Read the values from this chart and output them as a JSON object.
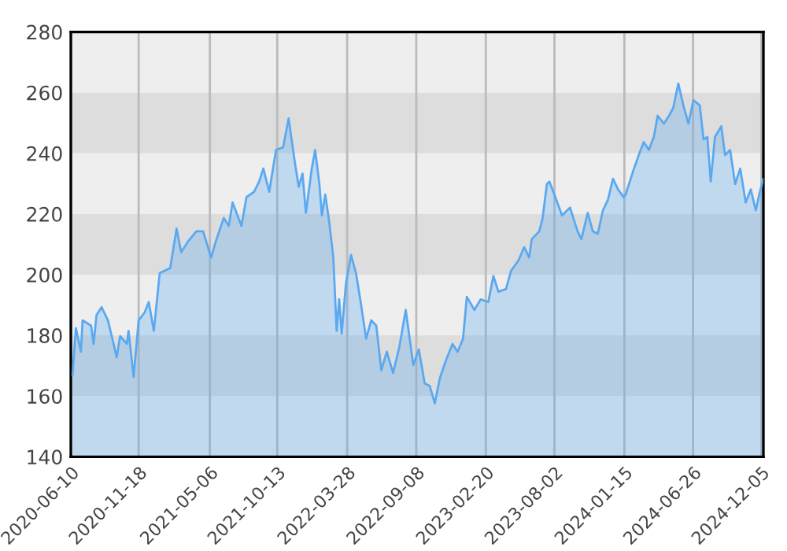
{
  "chart_data": {
    "type": "area",
    "x": [
      "2020-06-14",
      "2020-06-22",
      "2020-07-04",
      "2020-07-08",
      "2020-07-28",
      "2020-08-03",
      "2020-08-10",
      "2020-08-22",
      "2020-09-06",
      "2020-09-15",
      "2020-09-27",
      "2020-10-05",
      "2020-10-21",
      "2020-10-25",
      "2020-11-06",
      "2020-11-18",
      "2020-12-02",
      "2020-12-12",
      "2020-12-24",
      "2021-01-07",
      "2021-02-01",
      "2021-02-16",
      "2021-02-27",
      "2021-03-15",
      "2021-04-04",
      "2021-04-20",
      "2021-05-09",
      "2021-05-20",
      "2021-06-08",
      "2021-06-20",
      "2021-06-29",
      "2021-07-20",
      "2021-08-01",
      "2021-08-19",
      "2021-08-31",
      "2021-09-10",
      "2021-09-24",
      "2021-10-10",
      "2021-10-27",
      "2021-11-09",
      "2021-11-24",
      "2021-12-03",
      "2021-12-12",
      "2021-12-20",
      "2022-01-03",
      "2022-01-11",
      "2022-01-21",
      "2022-01-27",
      "2022-02-04",
      "2022-02-13",
      "2022-02-23",
      "2022-03-03",
      "2022-03-09",
      "2022-03-15",
      "2022-03-25",
      "2022-04-06",
      "2022-04-18",
      "2022-04-30",
      "2022-05-12",
      "2022-05-24",
      "2022-06-05",
      "2022-06-17",
      "2022-06-30",
      "2022-07-15",
      "2022-07-30",
      "2022-08-14",
      "2022-09-01",
      "2022-09-14",
      "2022-09-28",
      "2022-10-10",
      "2022-10-22",
      "2022-11-03",
      "2022-11-18",
      "2022-12-03",
      "2022-12-15",
      "2022-12-28",
      "2023-01-06",
      "2023-01-24",
      "2023-02-08",
      "2023-02-26",
      "2023-03-10",
      "2023-03-22",
      "2023-04-09",
      "2023-04-21",
      "2023-05-09",
      "2023-05-22",
      "2023-06-03",
      "2023-06-09",
      "2023-06-27",
      "2023-07-05",
      "2023-07-15",
      "2023-07-21",
      "2023-08-02",
      "2023-08-20",
      "2023-09-08",
      "2023-09-26",
      "2023-10-05",
      "2023-10-20",
      "2023-11-01",
      "2023-11-13",
      "2023-11-25",
      "2023-12-07",
      "2023-12-19",
      "2023-12-31",
      "2024-01-13",
      "2024-01-18",
      "2024-02-05",
      "2024-02-18",
      "2024-03-01",
      "2024-03-13",
      "2024-03-25",
      "2024-04-03",
      "2024-04-18",
      "2024-04-30",
      "2024-05-10",
      "2024-05-22",
      "2024-06-03",
      "2024-06-15",
      "2024-06-27",
      "2024-07-12",
      "2024-07-21",
      "2024-07-30",
      "2024-08-07",
      "2024-08-17",
      "2024-09-01",
      "2024-09-10",
      "2024-09-22",
      "2024-10-04",
      "2024-10-16",
      "2024-10-29",
      "2024-11-10",
      "2024-11-22",
      "2024-11-30",
      "2024-12-10"
    ],
    "series": [
      {
        "color": "#5aa9f0",
        "values": [
          166.8,
          182.4,
          174.6,
          185,
          183.2,
          177.2,
          186.7,
          189.3,
          185,
          179.8,
          172.8,
          179.8,
          177.2,
          181.5,
          166.3,
          185,
          187.5,
          191,
          181.5,
          200.5,
          202.2,
          215.2,
          207.4,
          210.9,
          214.3,
          214.3,
          205.7,
          210.9,
          218.7,
          216.1,
          223.8,
          216.1,
          225.6,
          227.3,
          230.7,
          235,
          227.3,
          241.1,
          242,
          251.5,
          236.8,
          229,
          233.3,
          220.4,
          235,
          241.1,
          229.9,
          219.5,
          226.4,
          217.8,
          205.7,
          181.5,
          191.9,
          180.6,
          197,
          206.5,
          200.5,
          190.1,
          178.9,
          185,
          183.2,
          168.5,
          174.6,
          167.6,
          176.3,
          188.4,
          170.2,
          175.4,
          164.2,
          163.3,
          157.6,
          165.9,
          172,
          177.2,
          174.6,
          178.9,
          192.7,
          188.4,
          191.9,
          191,
          199.6,
          194.4,
          195.3,
          201.3,
          204.8,
          209.1,
          205.7,
          211.7,
          214.3,
          218.7,
          229.9,
          230.7,
          226.4,
          219.5,
          222.1,
          214.3,
          211.7,
          220.4,
          214.3,
          213.5,
          221.2,
          224.7,
          231.6,
          228.1,
          225.6,
          226.4,
          234.2,
          239.4,
          243.7,
          241.1,
          245.4,
          252.4,
          249.8,
          252.4,
          255,
          263,
          255.8,
          249.8,
          257.5,
          255.8,
          244.6,
          245.4,
          230.7,
          245.4,
          248.9,
          239.4,
          241.1,
          229.9,
          235,
          223.8,
          228.1,
          221.2,
          226.4,
          231.6
        ]
      }
    ],
    "xlim": [
      "2020-06-10",
      "2024-12-10"
    ],
    "xticks": [
      "2020-06-10",
      "2020-11-18",
      "2021-05-06",
      "2021-10-13",
      "2022-03-28",
      "2022-09-08",
      "2023-02-20",
      "2023-08-02",
      "2024-01-15",
      "2024-06-26",
      "2024-12-05"
    ],
    "ylim": [
      140,
      280
    ],
    "yticks": [
      140,
      160,
      180,
      200,
      220,
      240,
      260,
      280
    ],
    "grid": "x",
    "bands": [
      {
        "axis": "y",
        "from": 140,
        "to": 160,
        "color": "#eeeeee"
      },
      {
        "axis": "y",
        "from": 180,
        "to": 200,
        "color": "#eeeeee"
      },
      {
        "axis": "y",
        "from": 220,
        "to": 240,
        "color": "#eeeeee"
      },
      {
        "axis": "y",
        "from": 260,
        "to": 280,
        "color": "#eeeeee"
      },
      {
        "axis": "y",
        "from": 160,
        "to": 180,
        "color": "#dddddd"
      },
      {
        "axis": "y",
        "from": 200,
        "to": 220,
        "color": "#dddddd"
      },
      {
        "axis": "y",
        "from": 240,
        "to": 260,
        "color": "#dddddd"
      }
    ]
  }
}
